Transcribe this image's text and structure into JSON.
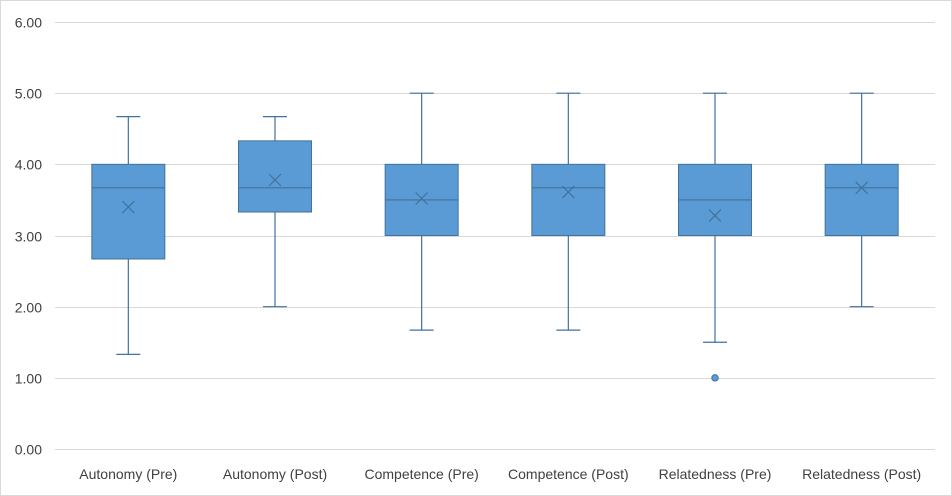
{
  "chart_data": {
    "type": "boxplot",
    "title": "",
    "xlabel": "",
    "ylabel": "",
    "ylim": [
      0,
      6
    ],
    "yticks": [
      "0.00",
      "1.00",
      "2.00",
      "3.00",
      "4.00",
      "5.00",
      "6.00"
    ],
    "ytick_values": [
      0,
      1,
      2,
      3,
      4,
      5,
      6
    ],
    "grid": true,
    "legend": "none",
    "colors": {
      "box_fill": "#5b9bd5",
      "box_stroke": "#41719c",
      "grid": "#d9d9d9"
    },
    "categories": [
      "Autonomy (Pre)",
      "Autonomy (Post)",
      "Competence (Pre)",
      "Competence (Post)",
      "Relatedness (Pre)",
      "Relatedness (Post)"
    ],
    "boxes": [
      {
        "min": 1.33,
        "q1": 2.67,
        "median": 3.67,
        "q3": 4.0,
        "max": 4.67,
        "mean": 3.4,
        "outliers": []
      },
      {
        "min": 2.0,
        "q1": 3.33,
        "median": 3.67,
        "q3": 4.33,
        "max": 4.67,
        "mean": 3.78,
        "outliers": []
      },
      {
        "min": 1.67,
        "q1": 3.0,
        "median": 3.5,
        "q3": 4.0,
        "max": 5.0,
        "mean": 3.52,
        "outliers": []
      },
      {
        "min": 1.67,
        "q1": 3.0,
        "median": 3.67,
        "q3": 4.0,
        "max": 5.0,
        "mean": 3.61,
        "outliers": []
      },
      {
        "min": 1.5,
        "q1": 3.0,
        "median": 3.5,
        "q3": 4.0,
        "max": 5.0,
        "mean": 3.28,
        "outliers": [
          1.0
        ]
      },
      {
        "min": 2.0,
        "q1": 3.0,
        "median": 3.67,
        "q3": 4.0,
        "max": 5.0,
        "mean": 3.67,
        "outliers": []
      }
    ]
  }
}
